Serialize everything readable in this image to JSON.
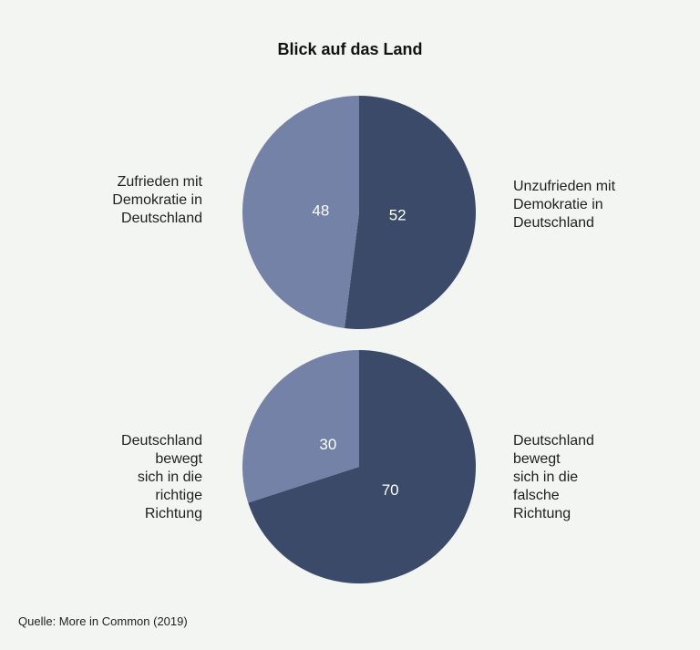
{
  "title": "Blick auf das Land",
  "source": "Quelle: More in Common (2019)",
  "colors": {
    "light": "#7382a6",
    "dark": "#3c4a69",
    "background": "#f3f5f3",
    "value_text": "#ffffff"
  },
  "chart_data": [
    {
      "type": "pie",
      "title": "",
      "slices": [
        {
          "label": "Unzufrieden mit\nDemokratie in\nDeutschland",
          "value": 52,
          "color": "#3c4a69"
        },
        {
          "label": "Zufrieden mit\nDemokratie in\nDeutschland",
          "value": 48,
          "color": "#7382a6"
        }
      ]
    },
    {
      "type": "pie",
      "title": "",
      "slices": [
        {
          "label": "Deutschland\nbewegt\nsich in die\nfalsche\nRichtung",
          "value": 70,
          "color": "#3c4a69"
        },
        {
          "label": "Deutschland\nbewegt\nsich in die\nrichtige\nRichtung",
          "value": 30,
          "color": "#7382a6"
        }
      ]
    }
  ]
}
